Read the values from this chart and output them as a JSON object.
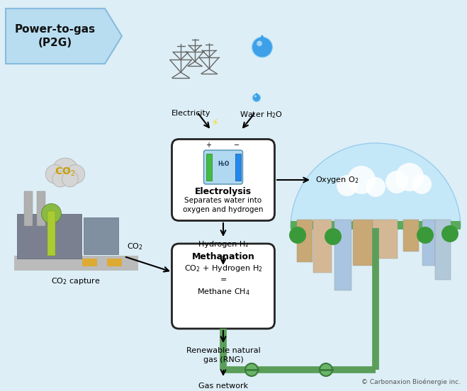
{
  "bg_color": "#ddeef6",
  "title_box_color": "#b8ddf0",
  "title_text": "Power-to-gas\n(P2G)",
  "title_fontsize": 11,
  "box_electrolysis_title": "Electrolysis",
  "box_electrolysis_body": "Separates water into\noxygen and hydrogen",
  "box_methanation_title": "Methanation",
  "box_methanation_body": "CO₂ + Hydrogen H₂\n=\nMethane CH₄",
  "label_electricity": "Electricity",
  "label_water": "Water H₂O",
  "label_hydrogen": "Hydrogen H₂",
  "label_oxygen": "Oxygen O₂",
  "label_co2_arrow": "CO₂",
  "label_co2_cloud": "CO₂",
  "label_co2_capture": "CO₂ capture",
  "label_rng": "Renewable natural\ngas (RNG)",
  "label_gas_network": "Gas network",
  "copyright": "© Carbonaxion Bioénergie inc.",
  "pipe_color": "#5a9e5a",
  "pipe_lw": 5
}
